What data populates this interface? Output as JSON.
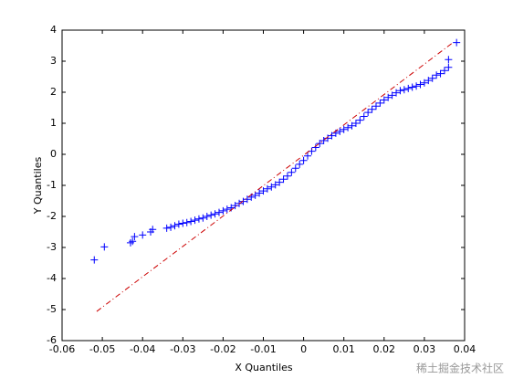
{
  "chart_data": {
    "type": "scatter",
    "xlabel": "X Quantiles",
    "ylabel": "Y Quantiles",
    "xlim": [
      -0.06,
      0.04
    ],
    "ylim": [
      -6,
      4
    ],
    "xticks": [
      -0.06,
      -0.05,
      -0.04,
      -0.03,
      -0.02,
      -0.01,
      0,
      0.01,
      0.02,
      0.03,
      0.04
    ],
    "yticks": [
      -6,
      -5,
      -4,
      -3,
      -2,
      -1,
      0,
      1,
      2,
      3,
      4
    ],
    "series": [
      {
        "marker": "+",
        "color": "#0000ff",
        "x": [
          -0.052,
          -0.0495,
          -0.043,
          -0.0425,
          -0.042,
          -0.04,
          -0.038,
          -0.0375,
          -0.034,
          -0.033,
          -0.032,
          -0.031,
          -0.03,
          -0.029,
          -0.028,
          -0.027,
          -0.026,
          -0.025,
          -0.024,
          -0.023,
          -0.022,
          -0.021,
          -0.02,
          -0.019,
          -0.018,
          -0.017,
          -0.016,
          -0.015,
          -0.014,
          -0.013,
          -0.012,
          -0.011,
          -0.01,
          -0.009,
          -0.008,
          -0.007,
          -0.006,
          -0.005,
          -0.004,
          -0.003,
          -0.002,
          -0.001,
          0,
          0.001,
          0.002,
          0.003,
          0.004,
          0.005,
          0.006,
          0.007,
          0.008,
          0.009,
          0.01,
          0.011,
          0.012,
          0.013,
          0.014,
          0.015,
          0.016,
          0.017,
          0.018,
          0.019,
          0.02,
          0.021,
          0.022,
          0.023,
          0.024,
          0.025,
          0.026,
          0.027,
          0.028,
          0.029,
          0.03,
          0.031,
          0.032,
          0.033,
          0.034,
          0.035,
          0.036,
          0.036,
          0.038
        ],
        "values": [
          -3.4,
          -2.98,
          -2.85,
          -2.8,
          -2.65,
          -2.6,
          -2.5,
          -2.42,
          -2.38,
          -2.35,
          -2.3,
          -2.25,
          -2.22,
          -2.2,
          -2.16,
          -2.12,
          -2.08,
          -2.05,
          -2.0,
          -1.96,
          -1.92,
          -1.87,
          -1.82,
          -1.77,
          -1.72,
          -1.65,
          -1.58,
          -1.52,
          -1.45,
          -1.38,
          -1.32,
          -1.25,
          -1.18,
          -1.11,
          -1.05,
          -0.98,
          -0.9,
          -0.8,
          -0.7,
          -0.58,
          -0.45,
          -0.32,
          -0.2,
          -0.05,
          0.1,
          0.22,
          0.35,
          0.44,
          0.52,
          0.6,
          0.68,
          0.74,
          0.8,
          0.86,
          0.92,
          1.0,
          1.1,
          1.22,
          1.35,
          1.45,
          1.55,
          1.65,
          1.75,
          1.83,
          1.9,
          1.98,
          2.05,
          2.08,
          2.12,
          2.16,
          2.2,
          2.25,
          2.3,
          2.38,
          2.45,
          2.55,
          2.6,
          2.7,
          2.8,
          3.05,
          3.6
        ]
      },
      {
        "type": "line",
        "style": "dashdot",
        "color": "#cc0000",
        "x": [
          -0.0514,
          0.037
        ],
        "values": [
          -5.06,
          3.59
        ]
      }
    ],
    "watermark": "稀土掘金技术社区"
  }
}
